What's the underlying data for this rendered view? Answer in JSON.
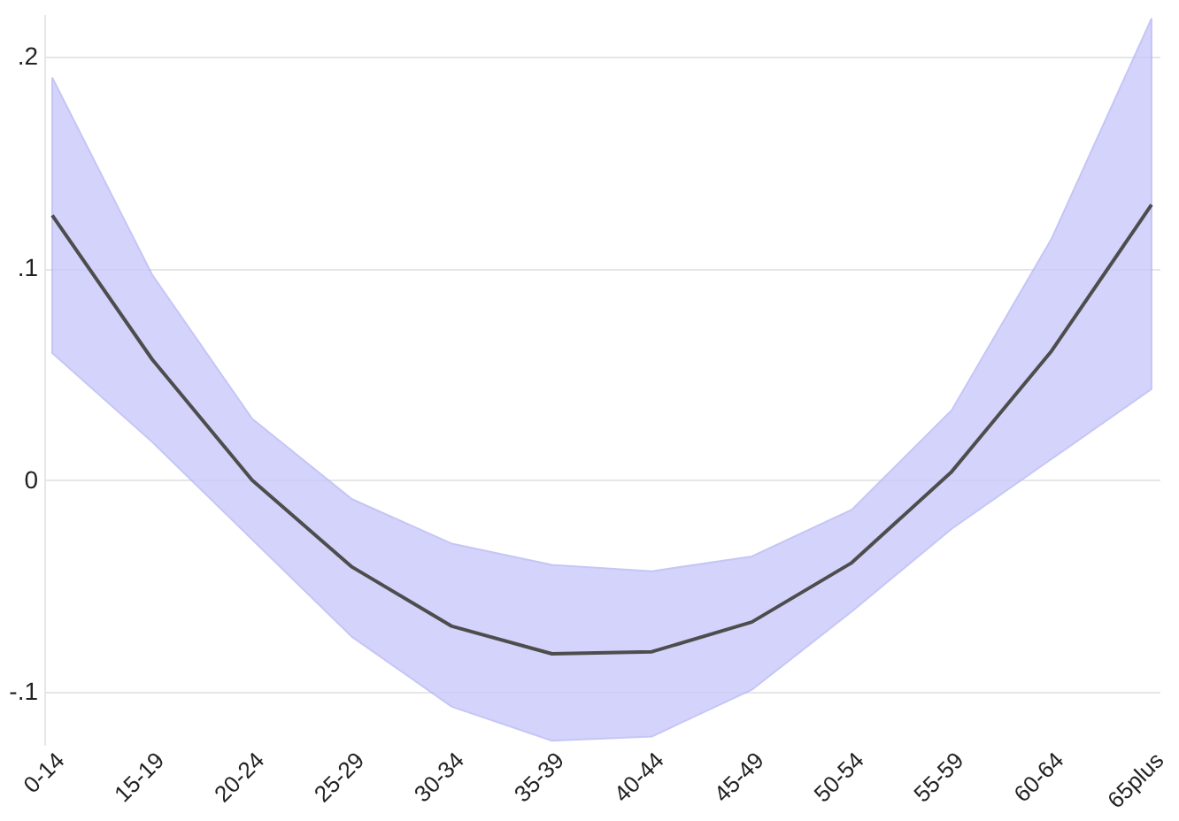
{
  "chart_data": {
    "type": "line",
    "categories": [
      "0-14",
      "15-19",
      "20-24",
      "25-29",
      "30-34",
      "35-39",
      "40-44",
      "45-49",
      "50-54",
      "55-59",
      "60-64",
      "65plus"
    ],
    "series": [
      {
        "color": "#4d4d4d",
        "values": [
          0.125,
          0.057,
          0.0,
          -0.041,
          -0.069,
          -0.082,
          -0.081,
          -0.067,
          -0.039,
          0.004,
          0.061,
          0.13
        ],
        "lower": [
          0.06,
          0.018,
          -0.028,
          -0.074,
          -0.107,
          -0.123,
          -0.121,
          -0.099,
          -0.062,
          -0.023,
          0.01,
          0.043
        ],
        "upper": [
          0.19,
          0.097,
          0.029,
          -0.009,
          -0.03,
          -0.04,
          -0.043,
          -0.036,
          -0.014,
          0.033,
          0.114,
          0.218
        ]
      }
    ],
    "ylim": [
      -0.125,
      0.22
    ],
    "yticks": [
      {
        "value": -0.1,
        "label": "-.1"
      },
      {
        "value": 0,
        "label": "0"
      },
      {
        "value": 0.1,
        "label": ".1"
      },
      {
        "value": 0.2,
        "label": ".2"
      }
    ],
    "grid": "y",
    "marker": "none",
    "line_style": "solid"
  }
}
